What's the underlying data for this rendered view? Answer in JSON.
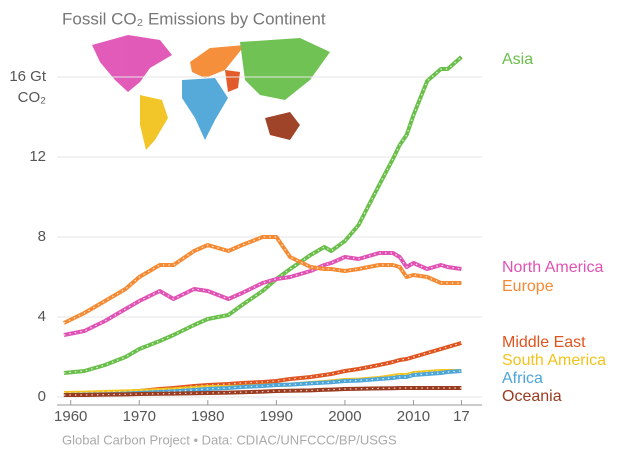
{
  "chart_data": {
    "type": "line",
    "title": "Fossil CO₂ Emissions by Continent",
    "y_label": "CO₂",
    "footer": "Global Carbon Project • Data: CDIAC/UNFCCC/BP/USGS",
    "x": [
      1959,
      1962,
      1965,
      1968,
      1970,
      1973,
      1975,
      1978,
      1980,
      1983,
      1985,
      1988,
      1990,
      1992,
      1995,
      1997,
      1998,
      2000,
      2002,
      2005,
      2007,
      2008,
      2009,
      2010,
      2012,
      2014,
      2015,
      2017
    ],
    "xlim": [
      1958,
      2020
    ],
    "xticks": [
      1960,
      1970,
      1980,
      1990,
      2000,
      2010,
      {
        "value": 2017,
        "label": "17"
      }
    ],
    "ylim": [
      0,
      18
    ],
    "yticks": [
      0,
      4,
      8,
      12,
      {
        "value": 16,
        "label": "16 Gt"
      }
    ],
    "grid": true,
    "series": [
      {
        "name": "Asia",
        "color": "#6abf4b",
        "values": [
          1.2,
          1.3,
          1.6,
          2.0,
          2.4,
          2.8,
          3.1,
          3.6,
          3.9,
          4.1,
          4.6,
          5.3,
          5.9,
          6.4,
          7.1,
          7.5,
          7.3,
          7.8,
          8.6,
          10.6,
          11.9,
          12.6,
          13.1,
          14.1,
          15.8,
          16.4,
          16.4,
          17.0
        ]
      },
      {
        "name": "North America",
        "color": "#e052b4",
        "values": [
          3.1,
          3.3,
          3.8,
          4.4,
          4.8,
          5.3,
          4.9,
          5.4,
          5.3,
          4.9,
          5.2,
          5.7,
          5.9,
          6.0,
          6.3,
          6.6,
          6.7,
          7.0,
          6.9,
          7.2,
          7.2,
          7.0,
          6.5,
          6.7,
          6.4,
          6.6,
          6.5,
          6.4
        ]
      },
      {
        "name": "Europe",
        "color": "#f58a32",
        "values": [
          3.7,
          4.2,
          4.8,
          5.4,
          6.0,
          6.6,
          6.6,
          7.3,
          7.6,
          7.3,
          7.6,
          8.0,
          8.0,
          7.0,
          6.5,
          6.4,
          6.4,
          6.3,
          6.4,
          6.6,
          6.6,
          6.5,
          6.0,
          6.1,
          6.0,
          5.7,
          5.7,
          5.7
        ]
      },
      {
        "name": "Middle East",
        "color": "#e0541f",
        "values": [
          0.1,
          0.15,
          0.2,
          0.25,
          0.3,
          0.4,
          0.45,
          0.55,
          0.6,
          0.65,
          0.7,
          0.75,
          0.8,
          0.9,
          1.0,
          1.1,
          1.15,
          1.3,
          1.4,
          1.6,
          1.75,
          1.85,
          1.9,
          2.0,
          2.2,
          2.4,
          2.5,
          2.7
        ]
      },
      {
        "name": "South America",
        "color": "#f2c31d",
        "values": [
          0.2,
          0.22,
          0.25,
          0.28,
          0.3,
          0.35,
          0.38,
          0.45,
          0.5,
          0.5,
          0.52,
          0.57,
          0.6,
          0.62,
          0.7,
          0.75,
          0.78,
          0.85,
          0.87,
          0.95,
          1.05,
          1.1,
          1.1,
          1.2,
          1.25,
          1.3,
          1.3,
          1.3
        ]
      },
      {
        "name": "Africa",
        "color": "#4da6d9",
        "values": [
          0.1,
          0.12,
          0.14,
          0.17,
          0.2,
          0.25,
          0.28,
          0.35,
          0.4,
          0.45,
          0.5,
          0.55,
          0.6,
          0.62,
          0.68,
          0.72,
          0.74,
          0.8,
          0.82,
          0.9,
          0.95,
          1.0,
          1.0,
          1.1,
          1.15,
          1.2,
          1.25,
          1.3
        ]
      },
      {
        "name": "Oceania",
        "color": "#9a3a1e",
        "values": [
          0.1,
          0.1,
          0.12,
          0.13,
          0.15,
          0.16,
          0.17,
          0.19,
          0.2,
          0.22,
          0.24,
          0.27,
          0.3,
          0.31,
          0.33,
          0.36,
          0.37,
          0.4,
          0.41,
          0.43,
          0.44,
          0.45,
          0.45,
          0.45,
          0.45,
          0.45,
          0.45,
          0.45
        ]
      }
    ]
  }
}
